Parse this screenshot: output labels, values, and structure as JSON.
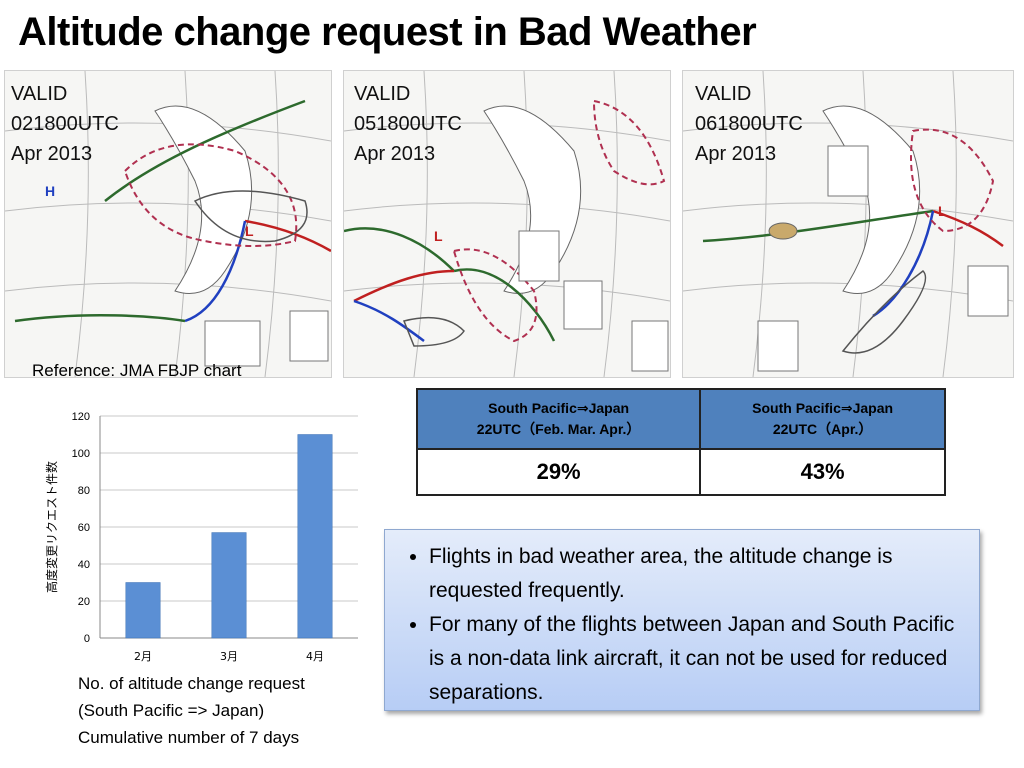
{
  "slide_title": "Altitude change request in Bad Weather",
  "maps": [
    {
      "valid": "VALID",
      "time": "021800UTC",
      "date": "Apr 2013"
    },
    {
      "valid": "VALID",
      "time": "051800UTC",
      "date": "Apr 2013"
    },
    {
      "valid": "VALID",
      "time": "061800UTC",
      "date": "Apr 2013"
    }
  ],
  "reference": "Reference: JMA FBJP chart",
  "table": {
    "headers": [
      {
        "line1": "South Pacific⇒Japan",
        "line2": "22UTC（Feb. Mar. Apr.）"
      },
      {
        "line1": "South Pacific⇒Japan",
        "line2": "22UTC（Apr.）"
      }
    ],
    "values": [
      "29%",
      "43%"
    ],
    "header_color": "#4f81bd"
  },
  "notes": [
    "Flights in bad weather area, the altitude change is requested frequently.",
    "For many of the flights between Japan and South Pacific is a non-data link aircraft, it can not be used for reduced separations."
  ],
  "chart_data": {
    "type": "bar",
    "categories": [
      "2月",
      "3月",
      "4月"
    ],
    "values": [
      30,
      57,
      110
    ],
    "ylabel": "高度変更リクエスト件数",
    "ylim": [
      0,
      120
    ],
    "yticks": [
      0,
      20,
      40,
      60,
      80,
      100,
      120
    ],
    "grid": true,
    "bar_color": "#5b8fd4",
    "caption": [
      "No. of altitude change request",
      "(South Pacific => Japan)",
      "Cumulative number of 7 days"
    ]
  }
}
